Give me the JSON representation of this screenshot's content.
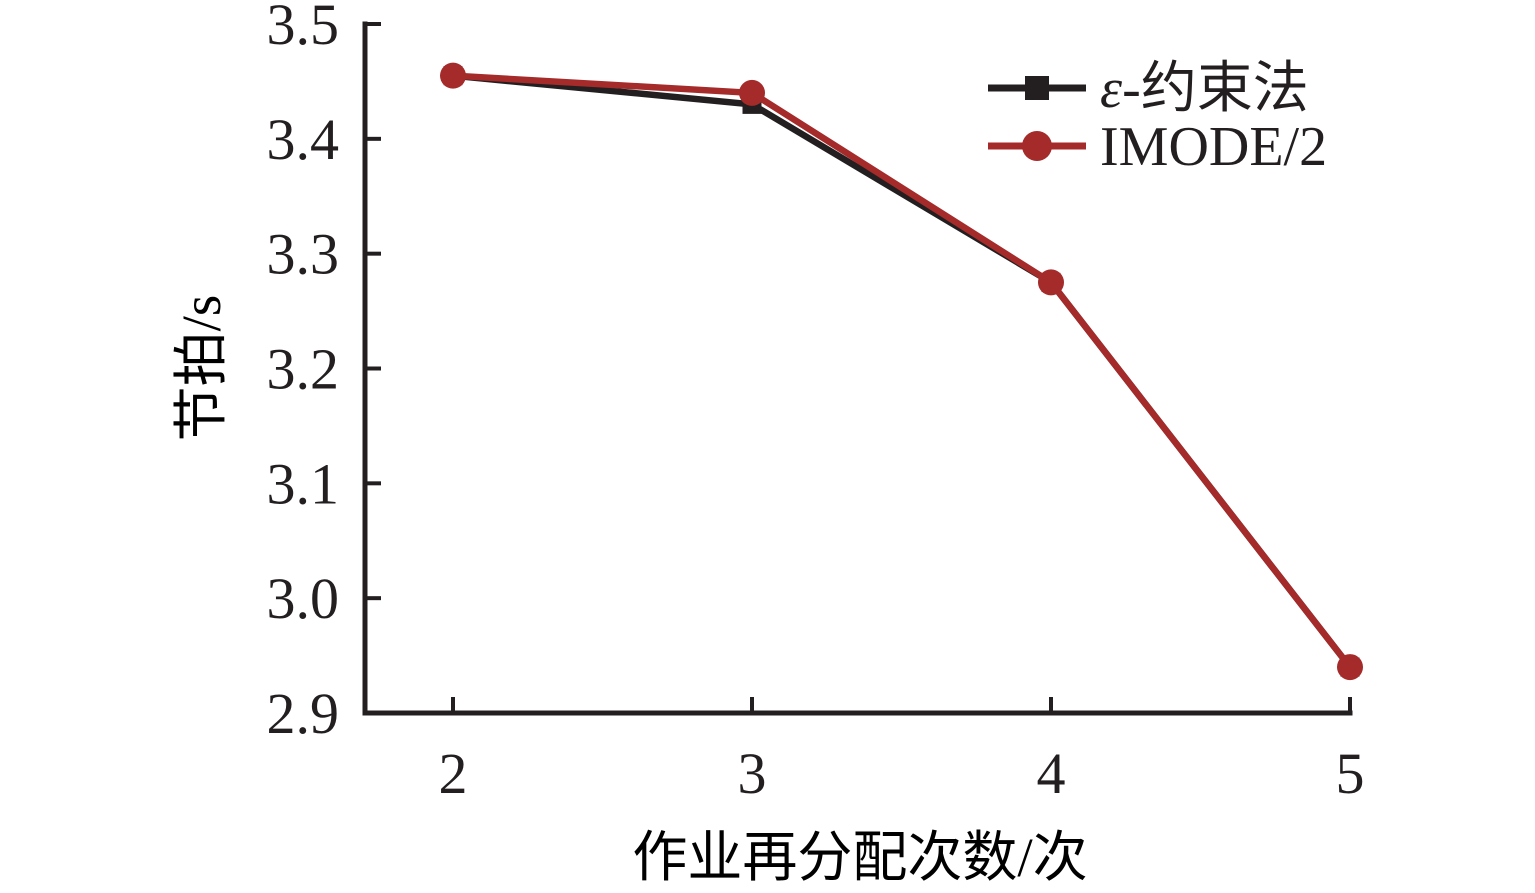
{
  "figure": {
    "background": "#ffffff"
  },
  "chart_data": {
    "type": "line",
    "x": [
      2,
      3,
      4,
      5
    ],
    "xtick_labels": [
      "2",
      "3",
      "4",
      "5"
    ],
    "yticks": [
      2.9,
      3.0,
      3.1,
      3.2,
      3.3,
      3.4,
      3.5
    ],
    "ytick_labels": [
      "2.9",
      "3.0",
      "3.1",
      "3.2",
      "3.3",
      "3.4",
      "3.5"
    ],
    "ylim": [
      2.9,
      3.5
    ],
    "xlabel": "作业再分配次数/次",
    "ylabel": "节拍/s",
    "grid": false,
    "legend_position": "top-right",
    "axis_color": "#231f20",
    "series": [
      {
        "name": "ε-约束法",
        "color": "#231f20",
        "marker": "square",
        "values": [
          3.455,
          3.43,
          3.275,
          2.94
        ]
      },
      {
        "name": "IMODE/2",
        "color": "#a52a2a",
        "marker": "circle",
        "values": [
          3.455,
          3.44,
          3.275,
          2.94
        ]
      }
    ]
  }
}
